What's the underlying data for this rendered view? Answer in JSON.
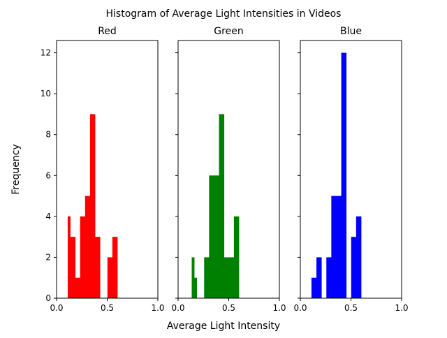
{
  "chart_data": {
    "type": "bar",
    "title": "Histogram of Average Light Intensities in Videos",
    "xlabel": "Average Light Intensity",
    "ylabel": "Frequency",
    "xlim": [
      0,
      1
    ],
    "ylim": [
      0,
      12.6
    ],
    "x_ticks": [
      "0.0",
      "0.5",
      "1.0"
    ],
    "y_ticks": [
      "0",
      "2",
      "4",
      "6",
      "8",
      "10",
      "12"
    ],
    "grid": false,
    "sharey": true,
    "panels": [
      {
        "title": "Red",
        "color": "#ff0000",
        "bins": [
          0.11,
          0.1345,
          0.159,
          0.1835,
          0.208,
          0.2325,
          0.257,
          0.2815,
          0.306,
          0.3305,
          0.355,
          0.3795,
          0.404,
          0.4285,
          0.453,
          0.4775,
          0.502,
          0.5265,
          0.551,
          0.5755,
          0.6
        ],
        "values": [
          4,
          3,
          3,
          1,
          1,
          4,
          4,
          5,
          5,
          9,
          9,
          3,
          3,
          0,
          0,
          0,
          2,
          2,
          3,
          3
        ]
      },
      {
        "title": "Green",
        "color": "#008000",
        "bins": [
          0.11,
          0.1345,
          0.159,
          0.1835,
          0.208,
          0.2325,
          0.257,
          0.2815,
          0.306,
          0.3305,
          0.355,
          0.3795,
          0.404,
          0.4285,
          0.453,
          0.4775,
          0.502,
          0.5265,
          0.551,
          0.5755,
          0.6
        ],
        "values": [
          0,
          2,
          1,
          0,
          0,
          0,
          2,
          2,
          6,
          6,
          6,
          6,
          9,
          9,
          2,
          2,
          2,
          2,
          4,
          4
        ]
      },
      {
        "title": "Blue",
        "color": "#0000ff",
        "bins": [
          0.11,
          0.1345,
          0.159,
          0.1835,
          0.208,
          0.2325,
          0.257,
          0.2815,
          0.306,
          0.3305,
          0.355,
          0.3795,
          0.404,
          0.4285,
          0.453,
          0.4775,
          0.502,
          0.5265,
          0.551,
          0.5755,
          0.6
        ],
        "values": [
          1,
          1,
          2,
          2,
          0,
          0,
          2,
          2,
          5,
          5,
          5,
          5,
          12,
          12,
          0,
          0,
          3,
          3,
          4,
          4
        ]
      }
    ]
  }
}
